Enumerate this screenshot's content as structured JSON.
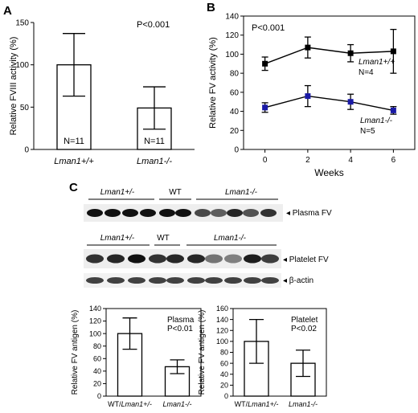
{
  "figure": {
    "panel_labels": {
      "a": "A",
      "b": "B",
      "c": "C"
    },
    "western": {
      "plasma_groups": [
        "Lman1+/-",
        "WT",
        "Lman1-/-"
      ],
      "plasma_label": "Plasma FV",
      "platelet_groups": [
        "Lman1+/-",
        "WT",
        "Lman1-/-"
      ],
      "platelet_label": "Platelet FV",
      "actin_label": "β-actin"
    }
  },
  "chart_data": [
    {
      "id": "A",
      "type": "bar",
      "categories": [
        "Lman1+/+",
        "Lman1-/-"
      ],
      "values": [
        100,
        49
      ],
      "errors": [
        37,
        25
      ],
      "bar_labels": [
        "N=11",
        "N=11"
      ],
      "annotation": "P<0.001",
      "ylabel": "Relative FVIII activity (%)",
      "ylim": [
        0,
        150
      ],
      "yticks": [
        0,
        50,
        100,
        150
      ]
    },
    {
      "id": "B",
      "type": "line",
      "xlabel": "Weeks",
      "ylabel": "Relative FV activity (%)",
      "ylim": [
        0,
        140
      ],
      "yticks": [
        0,
        20,
        40,
        60,
        80,
        100,
        120,
        140
      ],
      "xlim": [
        -1,
        7
      ],
      "xticks": [
        0,
        2,
        4,
        6
      ],
      "annotation": "P<0.001",
      "series": [
        {
          "name": "Lman1+/+",
          "n_label": "N=4",
          "x": [
            0,
            2,
            4,
            6
          ],
          "y": [
            90,
            107,
            101,
            103
          ],
          "errors": [
            7,
            11,
            9,
            23
          ],
          "color": "#000000"
        },
        {
          "name": "Lman1-/-",
          "n_label": "N=5",
          "x": [
            0,
            2,
            4,
            6
          ],
          "y": [
            44,
            56,
            50,
            41
          ],
          "errors": [
            5,
            11,
            8,
            4
          ],
          "color": "#1a1aa6"
        }
      ]
    },
    {
      "id": "C-plasma",
      "type": "bar",
      "categories": [
        "WT/Lman1+/-",
        "Lman1-/-"
      ],
      "values": [
        100,
        47
      ],
      "errors": [
        25,
        11
      ],
      "annotation": "Plasma\nP<0.01",
      "ylabel": "Relative FV antigen (%)",
      "ylim": [
        0,
        140
      ],
      "yticks": [
        0,
        20,
        40,
        60,
        80,
        100,
        120,
        140
      ]
    },
    {
      "id": "C-platelet",
      "type": "bar",
      "categories": [
        "WT/Lman1+/-",
        "Lman1-/-"
      ],
      "values": [
        100,
        60
      ],
      "errors": [
        40,
        24
      ],
      "annotation": "Platelet\nP<0.02",
      "ylabel": "Relative FV antigen (%)",
      "ylim": [
        0,
        160
      ],
      "yticks": [
        0,
        20,
        40,
        60,
        80,
        100,
        120,
        140,
        160
      ]
    }
  ]
}
